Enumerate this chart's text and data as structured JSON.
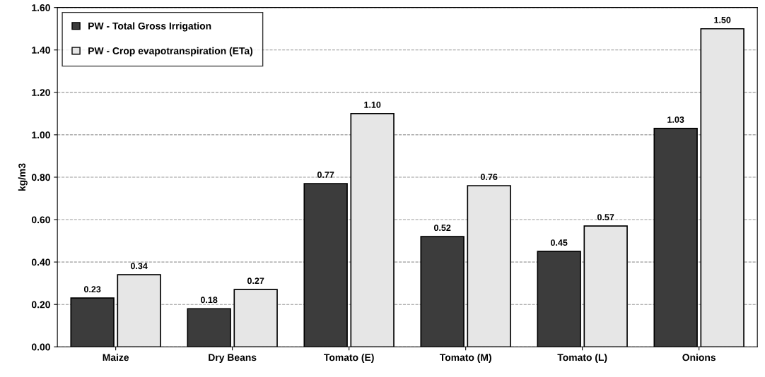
{
  "chart_data": {
    "type": "bar",
    "ylabel": "kg/m3",
    "categories": [
      "Maize",
      "Dry Beans",
      "Tomato (E)",
      "Tomato (M)",
      "Tomato (L)",
      "Onions"
    ],
    "series": [
      {
        "name": "PW - Total Gross Irrigation",
        "color": "#3c3c3c",
        "values": [
          0.23,
          0.18,
          0.77,
          0.52,
          0.45,
          1.03
        ],
        "value_labels": [
          "0.23",
          "0.18",
          "0.77",
          "0.52",
          "0.45",
          "1.03"
        ]
      },
      {
        "name": "PW - Crop evapotranspiration (ETa)",
        "color": "#e6e6e6",
        "values": [
          0.34,
          0.27,
          1.1,
          0.76,
          0.57,
          1.5
        ],
        "value_labels": [
          "0.34",
          "0.27",
          "1.10",
          "0.76",
          "0.57",
          "1.50"
        ]
      }
    ],
    "ylim": [
      0,
      1.6
    ],
    "yticks": [
      {
        "value": 0,
        "label": "0.00"
      },
      {
        "value": 0.2,
        "label": "0.20"
      },
      {
        "value": 0.4,
        "label": "0.40"
      },
      {
        "value": 0.6,
        "label": "0.60"
      },
      {
        "value": 0.8,
        "label": "0.80"
      },
      {
        "value": 1.0,
        "label": "1.00"
      },
      {
        "value": 1.2,
        "label": "1.20"
      },
      {
        "value": 1.4,
        "label": "1.40"
      },
      {
        "value": 1.6,
        "label": "1.60"
      }
    ],
    "grid": "y",
    "legend": "top left"
  }
}
